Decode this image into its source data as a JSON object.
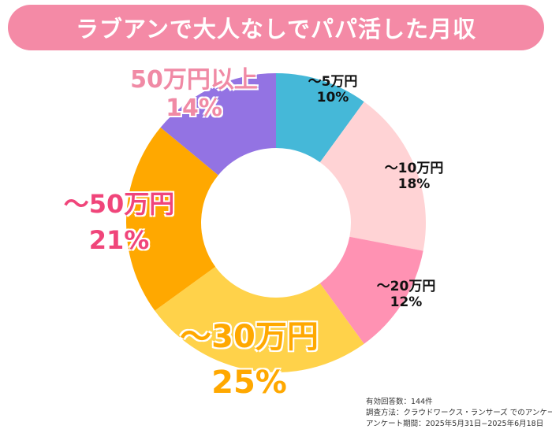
{
  "title": "ラブアンで大人なしでパパ活した月収",
  "chart_data": {
    "type": "pie",
    "subtype": "donut",
    "title": "ラブアンで大人なしでパパ活した月収",
    "start": "top",
    "direction": "clockwise",
    "slices": [
      {
        "label": "〜5万円",
        "value": 10,
        "percent_label": "10%",
        "color": "#45b8d8"
      },
      {
        "label": "〜10万円",
        "value": 18,
        "percent_label": "18%",
        "color": "#ffd3d5"
      },
      {
        "label": "〜20万円",
        "value": 12,
        "percent_label": "12%",
        "color": "#ff92b3"
      },
      {
        "label": "〜30万円",
        "value": 25,
        "percent_label": "25%",
        "color": "#ffd24a"
      },
      {
        "label": "〜50万円",
        "value": 21,
        "percent_label": "21%",
        "color": "#ffa800"
      },
      {
        "label": "50万円以上",
        "value": 14,
        "percent_label": "14%",
        "color": "#9373e3"
      }
    ]
  },
  "notes": {
    "respondents": "有効回答数：144件",
    "method": "調査方法：クラウドワークス・ランサーズ でのアンケート",
    "period": "アンケート期間：2025年5月31日−2025年6月18日"
  }
}
